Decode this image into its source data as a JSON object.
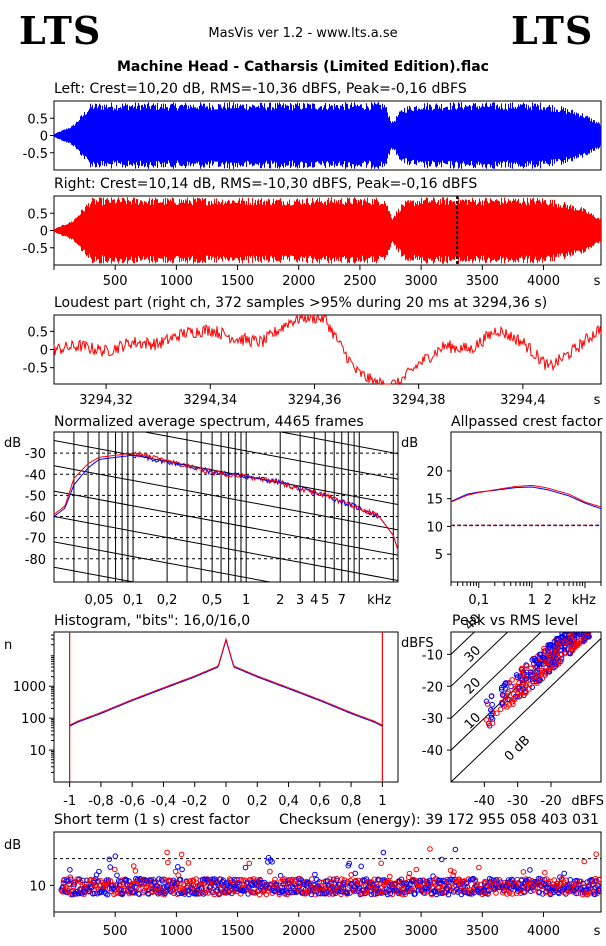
{
  "header": {
    "logo_left": "LTS",
    "logo_right": "LTS",
    "app": "MasVis ver 1.2 - www.lts.a.se",
    "file": "Machine Head - Catharsis (Limited Edition).flac"
  },
  "colors": {
    "left": "#0000ff",
    "right": "#ff0000"
  },
  "panels": {
    "left": "Left: Crest=10,20 dB, RMS=-10,36 dBFS, Peak=-0,16 dBFS",
    "right": "Right: Crest=10,14 dB, RMS=-10,30 dBFS, Peak=-0,16 dBFS",
    "loudest": "Loudest part (right ch, 372 samples >95% during 20 ms at 3294,36 s)",
    "spectrum": "Normalized average spectrum, 4465 frames",
    "allpass": "Allpassed crest factor",
    "histogram": "Histogram, \"bits\": 16,0/16,0",
    "peakrms": "Peak vs RMS level",
    "crest": "Short term (1 s) crest factor",
    "checksum": "Checksum (energy):  39 172 955 058 403 031"
  },
  "chart_data": [
    {
      "type": "area",
      "name": "left-waveform",
      "xlim": [
        0,
        4470
      ],
      "ylim": [
        -1,
        1
      ],
      "yticks": [
        "0.5",
        "0",
        "-0.5"
      ],
      "envelope_x": [
        0,
        150,
        300,
        450,
        700,
        900,
        1100,
        1300,
        1500,
        1800,
        2100,
        2400,
        2700,
        2760,
        2850,
        3000,
        3200,
        3300,
        3400,
        3600,
        3800,
        4000,
        4100,
        4300,
        4470
      ],
      "envelope_y": [
        0.05,
        0.3,
        0.95,
        0.97,
        0.97,
        0.96,
        0.97,
        0.97,
        0.97,
        0.96,
        0.97,
        0.97,
        0.97,
        0.4,
        0.85,
        0.97,
        0.97,
        0.98,
        0.97,
        0.97,
        0.97,
        0.97,
        0.9,
        0.7,
        0.35
      ]
    },
    {
      "type": "area",
      "name": "right-waveform",
      "xlim": [
        0,
        4470
      ],
      "ylim": [
        -1,
        1
      ],
      "yticks": [
        "0.5",
        "0",
        "-0.5"
      ],
      "xticks": [
        "500",
        "1000",
        "1500",
        "2000",
        "2500",
        "3000",
        "3500",
        "4000"
      ],
      "xunit": "s",
      "envelope_x": [
        0,
        150,
        300,
        450,
        700,
        900,
        1100,
        1300,
        1500,
        1800,
        2100,
        2400,
        2700,
        2760,
        2850,
        3000,
        3200,
        3300,
        3400,
        3600,
        3800,
        4000,
        4100,
        4300,
        4470
      ],
      "envelope_y": [
        0.05,
        0.3,
        0.95,
        0.97,
        0.97,
        0.96,
        0.97,
        0.97,
        0.97,
        0.96,
        0.97,
        0.97,
        0.97,
        0.4,
        0.85,
        0.97,
        0.97,
        0.98,
        0.97,
        0.97,
        0.97,
        0.97,
        0.9,
        0.7,
        0.35
      ],
      "marker_x": 3294.36
    },
    {
      "type": "line",
      "name": "loudest-part",
      "xlim": [
        3294.31,
        3294.415
      ],
      "ylim": [
        -0.95,
        0.95
      ],
      "xticks": [
        "3294,32",
        "3294,34",
        "3294,36",
        "3294,38",
        "3294,4"
      ],
      "xunit": "s",
      "yticks": [
        "0.5",
        "0",
        "-0.5"
      ],
      "x": [
        3294.31,
        3294.315,
        3294.32,
        3294.325,
        3294.33,
        3294.335,
        3294.34,
        3294.345,
        3294.35,
        3294.355,
        3294.358,
        3294.362,
        3294.365,
        3294.368,
        3294.372,
        3294.376,
        3294.38,
        3294.385,
        3294.39,
        3294.395,
        3294.4,
        3294.405,
        3294.41,
        3294.415
      ],
      "y": [
        0.0,
        0.1,
        -0.05,
        0.2,
        0.15,
        0.45,
        0.55,
        0.3,
        0.2,
        0.75,
        0.9,
        0.85,
        0.1,
        -0.6,
        -0.95,
        -0.95,
        -0.4,
        0.1,
        0.0,
        0.55,
        0.2,
        -0.5,
        0.0,
        0.6
      ]
    },
    {
      "type": "line",
      "name": "normalized-spectrum",
      "xunit": "kHz",
      "xticks": [
        "0,05",
        "0,1",
        "0,2",
        "0,5",
        "1",
        "2",
        "3",
        "4",
        "5",
        "7",
        "kHz"
      ],
      "yunit": "dB",
      "yticks": [
        "-30",
        "-40",
        "-50",
        "-60",
        "-70",
        "-80"
      ],
      "xlim": [
        0.02,
        22
      ],
      "ylim": [
        -91,
        -20
      ],
      "series": [
        {
          "name": "left",
          "color": "#0000ff",
          "x": [
            0.02,
            0.025,
            0.03,
            0.04,
            0.05,
            0.07,
            0.1,
            0.15,
            0.2,
            0.3,
            0.5,
            1,
            2,
            3,
            5,
            7,
            10,
            15,
            20,
            22
          ],
          "y": [
            -60,
            -56,
            -45,
            -37,
            -33,
            -32,
            -31,
            -33,
            -34,
            -36,
            -39,
            -41,
            -44,
            -47,
            -50,
            -53,
            -56,
            -60,
            -69,
            -76
          ]
        },
        {
          "name": "right",
          "color": "#ff0000",
          "x": [
            0.02,
            0.025,
            0.03,
            0.04,
            0.05,
            0.07,
            0.1,
            0.15,
            0.2,
            0.3,
            0.5,
            1,
            2,
            3,
            5,
            7,
            10,
            15,
            20,
            22
          ],
          "y": [
            -59,
            -55,
            -42,
            -35,
            -32,
            -31,
            -30,
            -32,
            -34,
            -36,
            -39,
            -41,
            -44,
            -47,
            -50,
            -53,
            -56,
            -60,
            -69,
            -76
          ]
        }
      ]
    },
    {
      "type": "line",
      "name": "allpassed-crest",
      "yunit": "dB",
      "yticks": [
        "20",
        "15",
        "10",
        "5"
      ],
      "xticks": [
        "0,1",
        "1",
        "2",
        "kHz"
      ],
      "xunit": "kHz",
      "ylim": [
        0,
        27
      ],
      "xlim": [
        0.03,
        20
      ],
      "reference": 10.2,
      "series": [
        {
          "name": "left",
          "color": "#0000ff",
          "x": [
            0.03,
            0.06,
            0.1,
            0.2,
            0.5,
            1,
            2,
            5,
            10,
            20
          ],
          "y": [
            14.5,
            15.8,
            16.2,
            16.5,
            17.0,
            17.1,
            16.6,
            15.5,
            14.2,
            13.2
          ]
        },
        {
          "name": "right",
          "color": "#ff0000",
          "x": [
            0.03,
            0.06,
            0.1,
            0.2,
            0.5,
            1,
            2,
            5,
            10,
            20
          ],
          "y": [
            14.4,
            15.6,
            16.1,
            16.6,
            17.2,
            17.4,
            16.9,
            15.8,
            14.4,
            13.5
          ]
        }
      ]
    },
    {
      "type": "line",
      "name": "histogram",
      "yunit": "n",
      "ylog": true,
      "yticks": [
        "1000",
        "100",
        "10"
      ],
      "xticks": [
        "-1",
        "-0,8",
        "-0,6",
        "-0,4",
        "-0,2",
        "0",
        "0,2",
        "0,4",
        "0,6",
        "0,8",
        "1"
      ],
      "xlim": [
        -1.1,
        1.1
      ],
      "ylim": [
        1,
        50000
      ],
      "x": [
        -1.0,
        -0.95,
        -0.8,
        -0.6,
        -0.4,
        -0.2,
        -0.05,
        0.0,
        0.05,
        0.2,
        0.4,
        0.6,
        0.8,
        0.95,
        1.0
      ],
      "y": [
        60,
        80,
        150,
        380,
        900,
        2100,
        4300,
        30000,
        4300,
        2100,
        900,
        380,
        150,
        80,
        60
      ]
    },
    {
      "type": "scatter",
      "name": "peak-vs-rms",
      "xunit": "dBFS",
      "yunit": "dBFS",
      "xticks": [
        "-40",
        "-30",
        "-20"
      ],
      "yticks": [
        "-10",
        "-20",
        "-30",
        "-40"
      ],
      "diag_labels": [
        "40",
        "30",
        "20",
        "10",
        "0 dB"
      ],
      "xlim": [
        -50,
        -5
      ],
      "ylim": [
        -50,
        -3
      ]
    },
    {
      "type": "scatter",
      "name": "short-term-crest",
      "yunit": "dB",
      "yticks": [
        "10"
      ],
      "reference": 20,
      "xticks": [
        "500",
        "1000",
        "1500",
        "2000",
        "2500",
        "3000",
        "3500",
        "4000"
      ],
      "xunit": "s",
      "xlim": [
        0,
        4470
      ],
      "ylim": [
        0,
        30
      ],
      "mean": 9.5,
      "spread": 3.0
    }
  ]
}
